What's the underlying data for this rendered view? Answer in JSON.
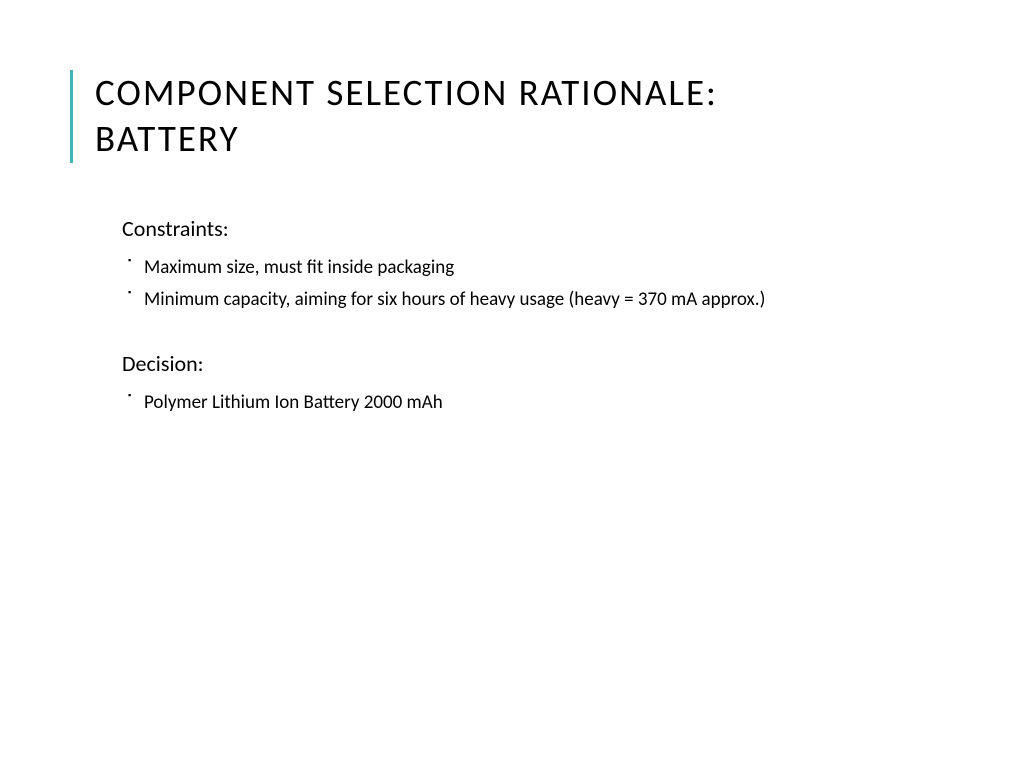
{
  "title_line1": "COMPONENT SELECTION RATIONALE:",
  "title_line2": "BATTERY",
  "sections": [
    {
      "heading": "Constraints:",
      "items": [
        "Maximum size, must fit inside packaging",
        "Minimum capacity, aiming for six hours of heavy usage (heavy = 370 mA approx.)"
      ]
    },
    {
      "heading": "Decision:",
      "items": [
        "Polymer Lithium Ion Battery 2000 mAh"
      ]
    }
  ],
  "styling": {
    "background_color": "#ffffff",
    "text_color": "#000000",
    "accent_border_color": "#3fb5b8",
    "title_fontsize": 37,
    "title_letter_spacing": 2,
    "heading_fontsize": 22,
    "body_fontsize": 19,
    "font_family": "Gill Sans"
  }
}
